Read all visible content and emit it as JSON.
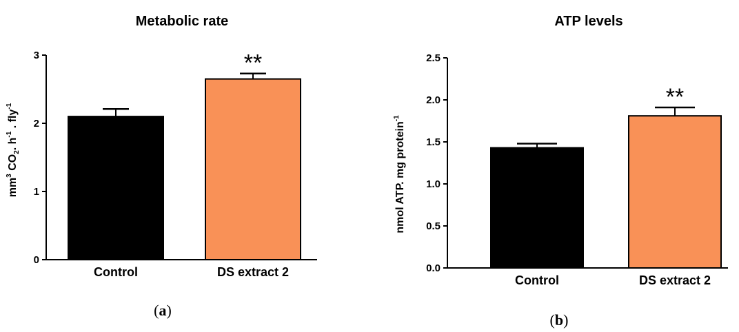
{
  "chart_data": [
    {
      "type": "bar",
      "title": "Metabolic rate",
      "categories": [
        "Control",
        "DS extract 2"
      ],
      "values": [
        2.1,
        2.65
      ],
      "errors": [
        0.11,
        0.08
      ],
      "colors": [
        "#000000",
        "#f99157"
      ],
      "significance": [
        "",
        "**"
      ],
      "ylabel": {
        "main": "mm",
        "sup1": "3",
        "mid1": " CO",
        "sub": "2",
        "mid2": ". h",
        "sup2": "-1",
        "mid3": " . fly",
        "sup3": "-1"
      },
      "ylim": [
        0,
        3
      ],
      "yticks": [
        0,
        1,
        2,
        3
      ],
      "ytick_labels": [
        "0",
        "1",
        "2",
        "3"
      ],
      "panel_label": {
        "open": "(",
        "letter": "a",
        "close": ")"
      }
    },
    {
      "type": "bar",
      "title": "ATP levels",
      "categories": [
        "Control",
        "DS extract 2"
      ],
      "values": [
        1.43,
        1.81
      ],
      "errors": [
        0.05,
        0.1
      ],
      "colors": [
        "#000000",
        "#f99157"
      ],
      "significance": [
        "",
        "**"
      ],
      "ylabel": {
        "main": "nmol ATP. mg protein",
        "sup1": "-1"
      },
      "ylim": [
        0,
        2.5
      ],
      "yticks": [
        0,
        0.5,
        1,
        1.5,
        2,
        2.5
      ],
      "ytick_labels": [
        "0.0",
        "0.5",
        "1.0",
        "1.5",
        "2.0",
        "2.5"
      ],
      "panel_label": {
        "open": "(",
        "letter": "b",
        "close": ")"
      }
    }
  ]
}
